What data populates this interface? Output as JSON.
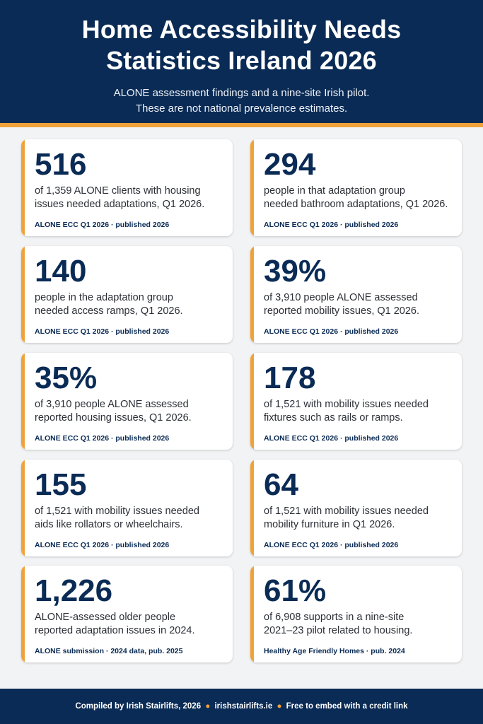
{
  "header": {
    "title_line1": "Home Accessibility Needs",
    "title_line2": "Statistics Ireland 2026",
    "subtitle_line1": "ALONE assessment findings and a nine-site Irish pilot.",
    "subtitle_line2": "These are not national prevalence estimates."
  },
  "cards": [
    {
      "stat": "516",
      "desc_line1": "of 1,359 ALONE clients with housing",
      "desc_line2": "issues needed adaptations, Q1 2026.",
      "source": "ALONE ECC Q1 2026 · published 2026"
    },
    {
      "stat": "294",
      "desc_line1": "people in that adaptation group",
      "desc_line2": "needed bathroom adaptations, Q1 2026.",
      "source": "ALONE ECC Q1 2026 · published 2026"
    },
    {
      "stat": "140",
      "desc_line1": "people in the adaptation group",
      "desc_line2": "needed access ramps, Q1 2026.",
      "source": "ALONE ECC Q1 2026 · published 2026"
    },
    {
      "stat": "39%",
      "desc_line1": "of 3,910 people ALONE assessed",
      "desc_line2": "reported mobility issues, Q1 2026.",
      "source": "ALONE ECC Q1 2026 · published 2026"
    },
    {
      "stat": "35%",
      "desc_line1": "of 3,910 people ALONE assessed",
      "desc_line2": "reported housing issues, Q1 2026.",
      "source": "ALONE ECC Q1 2026 · published 2026"
    },
    {
      "stat": "178",
      "desc_line1": "of 1,521 with mobility issues needed",
      "desc_line2": "fixtures such as rails or ramps.",
      "source": "ALONE ECC Q1 2026 · published 2026"
    },
    {
      "stat": "155",
      "desc_line1": "of 1,521 with mobility issues needed",
      "desc_line2": "aids like rollators or wheelchairs.",
      "source": "ALONE ECC Q1 2026 · published 2026"
    },
    {
      "stat": "64",
      "desc_line1": "of 1,521 with mobility issues needed",
      "desc_line2": "mobility furniture in Q1 2026.",
      "source": "ALONE ECC Q1 2026 · published 2026"
    },
    {
      "stat": "1,226",
      "desc_line1": "ALONE-assessed older people",
      "desc_line2": "reported adaptation issues in 2024.",
      "source": "ALONE submission · 2024 data, pub. 2025"
    },
    {
      "stat": "61%",
      "desc_line1": "of 6,908 supports in a nine-site",
      "desc_line2": "2021–23 pilot related to housing.",
      "source": "Healthy Age Friendly Homes · pub. 2024"
    }
  ],
  "footer": {
    "part1": "Compiled by Irish Stairlifts, 2026",
    "part2": "irishstairlifts.ie",
    "part3": "Free to embed with a credit link",
    "separator": "●"
  },
  "colors": {
    "navy": "#0a2b55",
    "accent_orange": "#f0a23a",
    "background": "#f2f3f5"
  }
}
